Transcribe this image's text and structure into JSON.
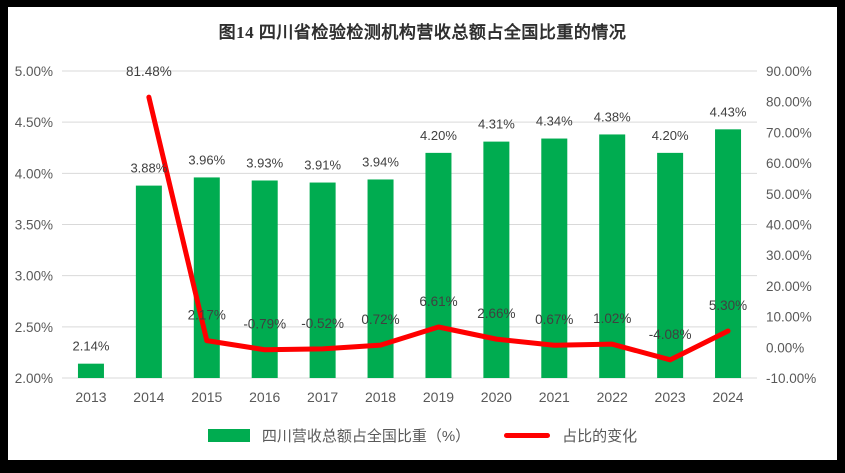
{
  "frame": {
    "border_color": "#000000",
    "surface_color": "#ffffff"
  },
  "chart_data": {
    "type": "combo-bar-line",
    "title": "图14  四川省检验检测机构营收总额占全国比重的情况",
    "categories": [
      "2013",
      "2014",
      "2015",
      "2016",
      "2017",
      "2018",
      "2019",
      "2020",
      "2021",
      "2022",
      "2023",
      "2024"
    ],
    "series": [
      {
        "name": "四川营收总额占全国比重（%）",
        "type": "bar",
        "axis": "left",
        "color": "#00AC50",
        "values": [
          2.14,
          3.88,
          3.96,
          3.93,
          3.91,
          3.94,
          4.2,
          4.31,
          4.34,
          4.38,
          4.2,
          4.43
        ],
        "labels": [
          "2.14%",
          "3.88%",
          "3.96%",
          "3.93%",
          "3.91%",
          "3.94%",
          "4.20%",
          "4.31%",
          "4.34%",
          "4.38%",
          "4.20%",
          "4.43%"
        ]
      },
      {
        "name": "占比的变化",
        "type": "line",
        "axis": "right",
        "color": "#FF0000",
        "values": [
          null,
          81.48,
          2.17,
          -0.79,
          -0.52,
          0.72,
          6.61,
          2.66,
          0.67,
          1.02,
          -4.08,
          5.3
        ],
        "labels": [
          "",
          "81.48%",
          "2.17%",
          "-0.79%",
          "-0.52%",
          "0.72%",
          "6.61%",
          "2.66%",
          "0.67%",
          "1.02%",
          "-4.08%",
          "5.30%"
        ]
      }
    ],
    "left_axis": {
      "min": 2.0,
      "max": 5.0,
      "step": 0.5,
      "tick_labels": [
        "2.00%",
        "2.50%",
        "3.00%",
        "3.50%",
        "4.00%",
        "4.50%",
        "5.00%"
      ]
    },
    "right_axis": {
      "min": -10.0,
      "max": 90.0,
      "step": 10,
      "tick_labels": [
        "-10.00%",
        "0.00%",
        "10.00%",
        "20.00%",
        "30.00%",
        "40.00%",
        "50.00%",
        "60.00%",
        "70.00%",
        "80.00%",
        "90.00%"
      ]
    },
    "grid": true,
    "gridline_color": "#D9D9D9",
    "axis_text_color": "#595959",
    "data_label_color": "#404040",
    "legend_position": "bottom"
  }
}
